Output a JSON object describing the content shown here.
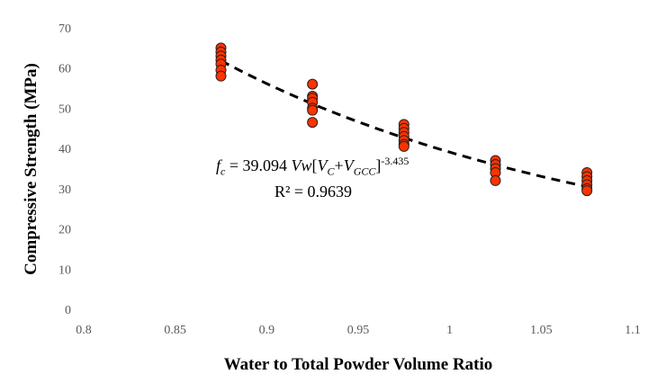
{
  "chart_data": {
    "type": "scatter",
    "title": "",
    "xlabel": "Water to Total Powder Volume Ratio",
    "ylabel": "Compressive Strength (MPa)",
    "xlim": [
      0.8,
      1.1
    ],
    "ylim": [
      0,
      70
    ],
    "xticks": [
      "0.8",
      "0.85",
      "0.9",
      "0.95",
      "1",
      "1.05",
      "1.1"
    ],
    "yticks": [
      "0",
      "10",
      "20",
      "30",
      "40",
      "50",
      "60",
      "70"
    ],
    "grid": false,
    "marker_color": "#ff3300",
    "points": [
      {
        "x": 0.875,
        "y": [
          65,
          64,
          63,
          62,
          61,
          59.5,
          58
        ]
      },
      {
        "x": 0.925,
        "y": [
          56,
          53,
          52.5,
          51.5,
          50,
          49.5,
          46.5
        ]
      },
      {
        "x": 0.975,
        "y": [
          46,
          45,
          44,
          43,
          42,
          41,
          40.5
        ]
      },
      {
        "x": 1.025,
        "y": [
          37,
          36,
          35,
          34,
          32
        ]
      },
      {
        "x": 1.075,
        "y": [
          34,
          33,
          32,
          31,
          30,
          29.5
        ]
      }
    ],
    "trendline": {
      "type": "power",
      "a": 39.094,
      "b": -3.435,
      "x_range": [
        0.875,
        1.075
      ]
    },
    "annotation": {
      "f": "f",
      "f_sub": "c",
      "eq_mid": " = 39.094 ",
      "vw": "Vw",
      "bracket_open": "[",
      "vc": "V",
      "vc_sub": "C",
      "plus": "+",
      "vgcc": "V",
      "vgcc_sub": "GCC",
      "bracket_close": "]",
      "exponent": "-3.435",
      "r2": "R² = 0.9639"
    }
  }
}
